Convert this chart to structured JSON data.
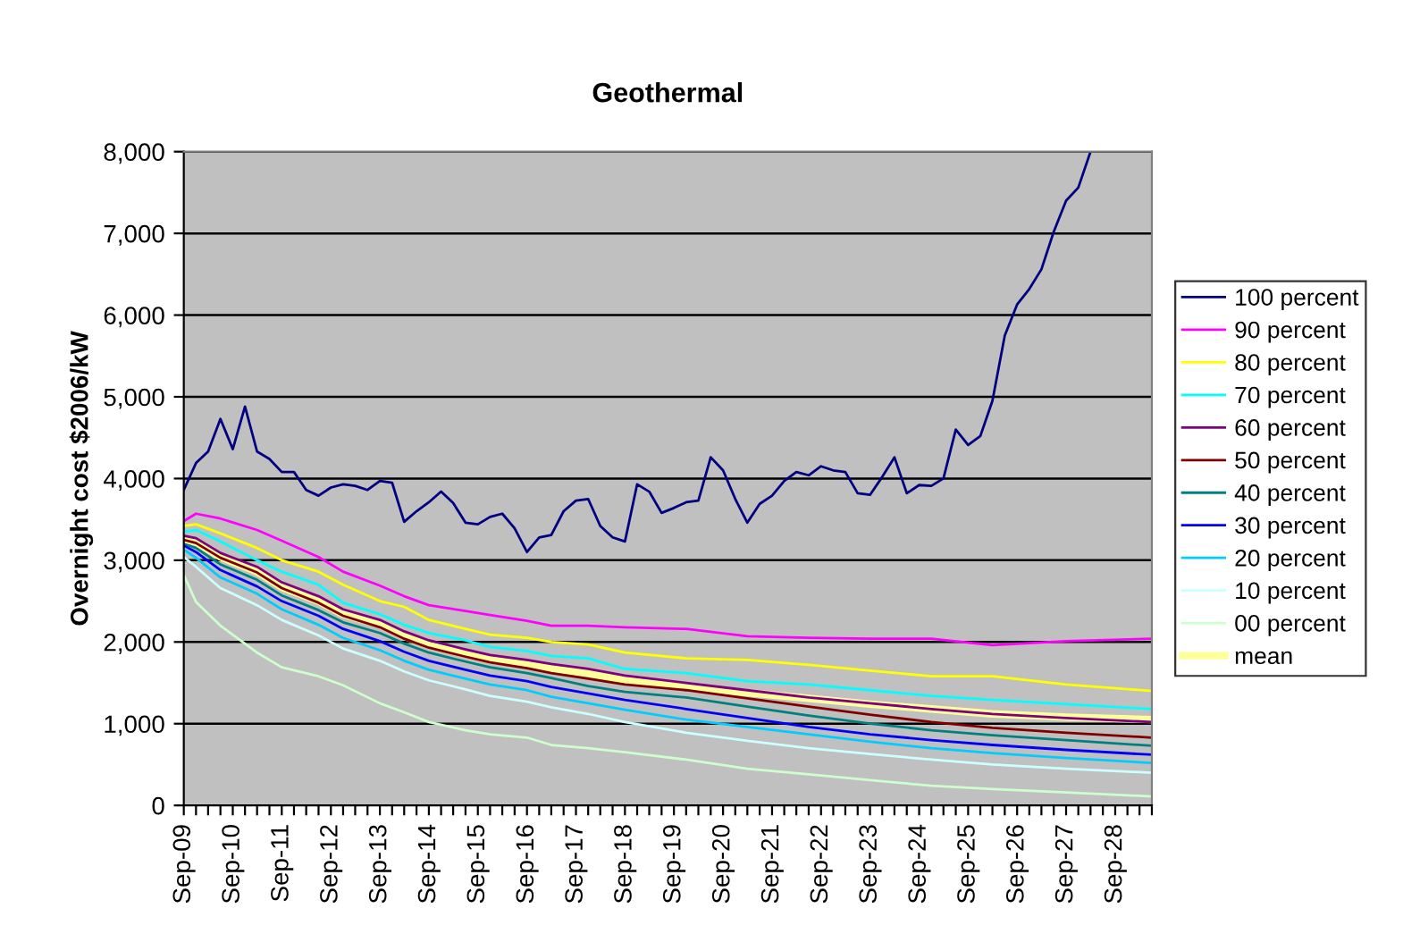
{
  "chart_data": {
    "type": "line",
    "title": "Geothermal",
    "ylabel": "Overnight cost $2006/kW",
    "x": [
      "2009-09",
      "2009-12",
      "2010-06",
      "2011-03",
      "2011-09",
      "2012-06",
      "2012-12",
      "2013-09",
      "2014-03",
      "2014-09",
      "2015-06",
      "2015-12",
      "2016-09",
      "2017-03",
      "2017-12",
      "2018-09",
      "2019-12",
      "2021-03",
      "2022-06",
      "2023-09",
      "2024-12",
      "2026-03",
      "2027-09",
      "2029-06"
    ],
    "xlim": [
      "2009-09",
      "2029-06"
    ],
    "xticks": [
      {
        "value": "2009-09",
        "label": "Sep-09"
      },
      {
        "value": "2009-12",
        "label": null
      },
      {
        "value": "2010-03",
        "label": null
      },
      {
        "value": "2010-06",
        "label": null
      },
      {
        "value": "2010-09",
        "label": "Sep-10"
      },
      {
        "value": "2010-12",
        "label": null
      },
      {
        "value": "2011-03",
        "label": null
      },
      {
        "value": "2011-06",
        "label": null
      },
      {
        "value": "2011-09",
        "label": "Sep-11"
      },
      {
        "value": "2011-12",
        "label": null
      },
      {
        "value": "2012-03",
        "label": null
      },
      {
        "value": "2012-06",
        "label": null
      },
      {
        "value": "2012-09",
        "label": "Sep-12"
      },
      {
        "value": "2012-12",
        "label": null
      },
      {
        "value": "2013-03",
        "label": null
      },
      {
        "value": "2013-06",
        "label": null
      },
      {
        "value": "2013-09",
        "label": "Sep-13"
      },
      {
        "value": "2013-12",
        "label": null
      },
      {
        "value": "2014-03",
        "label": null
      },
      {
        "value": "2014-06",
        "label": null
      },
      {
        "value": "2014-09",
        "label": "Sep-14"
      },
      {
        "value": "2014-12",
        "label": null
      },
      {
        "value": "2015-03",
        "label": null
      },
      {
        "value": "2015-06",
        "label": null
      },
      {
        "value": "2015-09",
        "label": "Sep-15"
      },
      {
        "value": "2015-12",
        "label": null
      },
      {
        "value": "2016-03",
        "label": null
      },
      {
        "value": "2016-06",
        "label": null
      },
      {
        "value": "2016-09",
        "label": "Sep-16"
      },
      {
        "value": "2016-12",
        "label": null
      },
      {
        "value": "2017-03",
        "label": null
      },
      {
        "value": "2017-06",
        "label": null
      },
      {
        "value": "2017-09",
        "label": "Sep-17"
      },
      {
        "value": "2017-12",
        "label": null
      },
      {
        "value": "2018-03",
        "label": null
      },
      {
        "value": "2018-06",
        "label": null
      },
      {
        "value": "2018-09",
        "label": "Sep-18"
      },
      {
        "value": "2018-12",
        "label": null
      },
      {
        "value": "2019-03",
        "label": null
      },
      {
        "value": "2019-06",
        "label": null
      },
      {
        "value": "2019-09",
        "label": "Sep-19"
      },
      {
        "value": "2019-12",
        "label": null
      },
      {
        "value": "2020-03",
        "label": null
      },
      {
        "value": "2020-06",
        "label": null
      },
      {
        "value": "2020-09",
        "label": "Sep-20"
      },
      {
        "value": "2020-12",
        "label": null
      },
      {
        "value": "2021-03",
        "label": null
      },
      {
        "value": "2021-06",
        "label": null
      },
      {
        "value": "2021-09",
        "label": "Sep-21"
      },
      {
        "value": "2021-12",
        "label": null
      },
      {
        "value": "2022-03",
        "label": null
      },
      {
        "value": "2022-06",
        "label": null
      },
      {
        "value": "2022-09",
        "label": "Sep-22"
      },
      {
        "value": "2022-12",
        "label": null
      },
      {
        "value": "2023-03",
        "label": null
      },
      {
        "value": "2023-06",
        "label": null
      },
      {
        "value": "2023-09",
        "label": "Sep-23"
      },
      {
        "value": "2023-12",
        "label": null
      },
      {
        "value": "2024-03",
        "label": null
      },
      {
        "value": "2024-06",
        "label": null
      },
      {
        "value": "2024-09",
        "label": "Sep-24"
      },
      {
        "value": "2024-12",
        "label": null
      },
      {
        "value": "2025-03",
        "label": null
      },
      {
        "value": "2025-06",
        "label": null
      },
      {
        "value": "2025-09",
        "label": "Sep-25"
      },
      {
        "value": "2025-12",
        "label": null
      },
      {
        "value": "2026-03",
        "label": null
      },
      {
        "value": "2026-06",
        "label": null
      },
      {
        "value": "2026-09",
        "label": "Sep-26"
      },
      {
        "value": "2026-12",
        "label": null
      },
      {
        "value": "2027-03",
        "label": null
      },
      {
        "value": "2027-06",
        "label": null
      },
      {
        "value": "2027-09",
        "label": "Sep-27"
      },
      {
        "value": "2027-12",
        "label": null
      },
      {
        "value": "2028-03",
        "label": null
      },
      {
        "value": "2028-06",
        "label": null
      },
      {
        "value": "2028-09",
        "label": "Sep-28"
      },
      {
        "value": "2028-12",
        "label": null
      },
      {
        "value": "2029-03",
        "label": null
      },
      {
        "value": "2029-06",
        "label": null
      }
    ],
    "ylim": [
      0,
      8000
    ],
    "yticks": [
      0,
      {
        "value": 1000,
        "label": "1,000"
      },
      {
        "value": 2000,
        "label": "2,000"
      },
      {
        "value": 3000,
        "label": "3,000"
      },
      {
        "value": 4000,
        "label": "4,000"
      },
      {
        "value": 5000,
        "label": "5,000"
      },
      {
        "value": 6000,
        "label": "6,000"
      },
      {
        "value": 7000,
        "label": "7,000"
      },
      {
        "value": 8000,
        "label": "8,000"
      }
    ],
    "grid": "y",
    "legend": "right",
    "line_style": "solid",
    "marker": "none",
    "series": [
      {
        "name": "100 percent",
        "color": "#000080",
        "x": [
          "2009-09",
          "2009-12",
          "2010-03",
          "2010-06",
          "2010-09",
          "2010-12",
          "2011-03",
          "2011-06",
          "2011-09",
          "2011-12",
          "2012-03",
          "2012-06",
          "2012-09",
          "2012-12",
          "2013-03",
          "2013-06",
          "2013-09",
          "2013-12",
          "2014-03",
          "2014-06",
          "2014-09",
          "2014-12",
          "2015-03",
          "2015-06",
          "2015-09",
          "2015-12",
          "2016-03",
          "2016-06",
          "2016-09",
          "2016-12",
          "2017-03",
          "2017-06",
          "2017-09",
          "2017-12",
          "2018-03",
          "2018-06",
          "2018-09",
          "2018-12",
          "2019-03",
          "2019-06",
          "2019-09",
          "2019-12",
          "2020-03",
          "2020-06",
          "2020-09",
          "2020-12",
          "2021-03",
          "2021-06",
          "2021-09",
          "2021-12",
          "2022-03",
          "2022-06",
          "2022-09",
          "2022-12",
          "2023-03",
          "2023-06",
          "2023-09",
          "2023-12",
          "2024-03",
          "2024-06",
          "2024-09",
          "2024-12",
          "2025-03",
          "2025-06",
          "2025-09",
          "2025-12",
          "2026-03",
          "2026-06",
          "2026-09",
          "2026-12",
          "2027-03",
          "2027-06",
          "2027-09",
          "2027-12",
          "2028-03"
        ],
        "values": [
          3860,
          4190,
          4330,
          4730,
          4360,
          4880,
          4330,
          4240,
          4080,
          4080,
          3860,
          3790,
          3890,
          3930,
          3910,
          3860,
          3970,
          3950,
          3470,
          3600,
          3710,
          3840,
          3700,
          3460,
          3440,
          3530,
          3570,
          3390,
          3100,
          3280,
          3310,
          3600,
          3730,
          3750,
          3420,
          3280,
          3230,
          3930,
          3840,
          3580,
          3640,
          3710,
          3730,
          4260,
          4100,
          3750,
          3460,
          3690,
          3790,
          3970,
          4080,
          4040,
          4150,
          4100,
          4080,
          3820,
          3800,
          4020,
          4260,
          3820,
          3920,
          3910,
          4000,
          4600,
          4410,
          4520,
          4950,
          5750,
          6130,
          6320,
          6560,
          7020,
          7400,
          7560,
          8000
        ]
      },
      {
        "name": "90 percent",
        "color": "#ff00ff",
        "values": [
          3480,
          3570,
          3510,
          3370,
          3240,
          3040,
          2860,
          2690,
          2560,
          2450,
          2380,
          2330,
          2260,
          2200,
          2200,
          2180,
          2160,
          2070,
          2050,
          2040,
          2040,
          1960,
          2010,
          2040
        ]
      },
      {
        "name": "80 percent",
        "color": "#ffff00",
        "values": [
          3420,
          3440,
          3330,
          3150,
          3000,
          2860,
          2700,
          2500,
          2430,
          2270,
          2160,
          2090,
          2050,
          2000,
          1970,
          1870,
          1800,
          1780,
          1720,
          1650,
          1580,
          1580,
          1480,
          1400
        ]
      },
      {
        "name": "70 percent",
        "color": "#00ffff",
        "values": [
          3350,
          3370,
          3230,
          3000,
          2860,
          2700,
          2480,
          2340,
          2210,
          2110,
          2020,
          1940,
          1890,
          1830,
          1800,
          1670,
          1620,
          1520,
          1480,
          1410,
          1340,
          1290,
          1240,
          1180
        ]
      },
      {
        "name": "60 percent",
        "color": "#800080",
        "values": [
          3300,
          3270,
          3090,
          2920,
          2730,
          2560,
          2400,
          2270,
          2130,
          2020,
          1910,
          1840,
          1780,
          1730,
          1670,
          1590,
          1500,
          1410,
          1320,
          1250,
          1180,
          1120,
          1070,
          1020
        ]
      },
      {
        "name": "50 percent",
        "color": "#800000",
        "values": [
          3250,
          3210,
          3030,
          2850,
          2660,
          2480,
          2320,
          2180,
          2040,
          1930,
          1820,
          1750,
          1680,
          1620,
          1550,
          1480,
          1410,
          1310,
          1210,
          1110,
          1020,
          950,
          890,
          830
        ]
      },
      {
        "name": "40 percent",
        "color": "#008080",
        "values": [
          3200,
          3150,
          2950,
          2760,
          2570,
          2390,
          2240,
          2110,
          1980,
          1870,
          1760,
          1690,
          1620,
          1560,
          1460,
          1390,
          1320,
          1210,
          1100,
          1000,
          920,
          860,
          800,
          730
        ]
      },
      {
        "name": "30 percent",
        "color": "#0000ff",
        "values": [
          3180,
          3100,
          2880,
          2680,
          2500,
          2320,
          2160,
          2010,
          1880,
          1770,
          1660,
          1590,
          1520,
          1450,
          1370,
          1290,
          1180,
          1070,
          960,
          870,
          800,
          740,
          680,
          620
        ]
      },
      {
        "name": "20 percent",
        "color": "#00ccff",
        "values": [
          3130,
          3030,
          2790,
          2590,
          2400,
          2210,
          2050,
          1900,
          1770,
          1660,
          1550,
          1480,
          1410,
          1330,
          1250,
          1170,
          1050,
          960,
          870,
          780,
          700,
          640,
          580,
          520
        ]
      },
      {
        "name": "10 percent",
        "color": "#ccffff",
        "values": [
          3040,
          2920,
          2660,
          2450,
          2270,
          2080,
          1920,
          1770,
          1640,
          1530,
          1420,
          1340,
          1270,
          1200,
          1120,
          1020,
          890,
          790,
          700,
          630,
          560,
          500,
          450,
          400
        ]
      },
      {
        "name": "00 percent",
        "color": "#ccffcc",
        "values": [
          2820,
          2490,
          2200,
          1870,
          1690,
          1580,
          1470,
          1250,
          1140,
          1020,
          920,
          870,
          830,
          740,
          700,
          650,
          560,
          450,
          380,
          310,
          240,
          200,
          160,
          110
        ]
      },
      {
        "name": "mean",
        "color": "#ffff99",
        "values": [
          3260,
          3220,
          3040,
          2860,
          2670,
          2500,
          2340,
          2210,
          2070,
          1960,
          1850,
          1780,
          1720,
          1670,
          1620,
          1530,
          1450,
          1380,
          1310,
          1240,
          1180,
          1120,
          1080,
          1050
        ]
      }
    ]
  }
}
